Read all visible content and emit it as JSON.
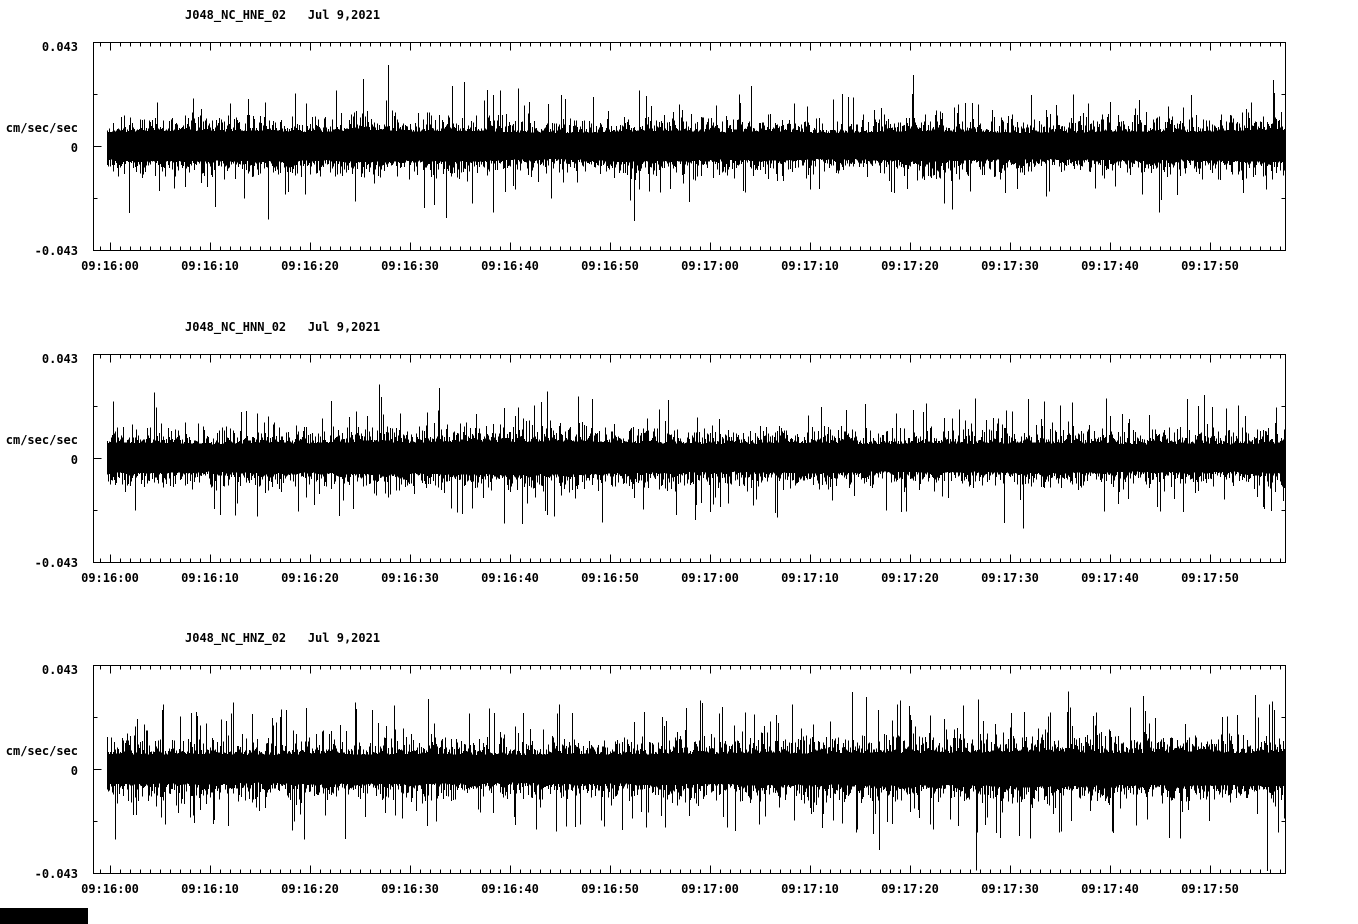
{
  "page": {
    "background": "#ffffff",
    "trace_color": "#000000",
    "artifact_color": "#000000"
  },
  "chart_data": [
    {
      "type": "line",
      "station": "J048_NC_HNE_02",
      "date": "Jul 9,2021",
      "title": "J048_NC_HNE_02   Jul 9,2021",
      "ylabel": "cm/sec/sec",
      "ylim": [
        -0.043,
        0.043
      ],
      "ytick_labels": [
        "0.043",
        "0",
        "-0.043"
      ],
      "x_tick_labels": [
        "09:16:00",
        "09:16:10",
        "09:16:20",
        "09:16:30",
        "09:16:40",
        "09:16:50",
        "09:17:00",
        "09:17:10",
        "09:17:20",
        "09:17:30",
        "09:17:40",
        "09:17:50"
      ],
      "x_major_interval_s": 10,
      "x_minor_interval_s": 1,
      "duration_s": 117.5,
      "grid": false,
      "legend": false,
      "noise_envelope": [
        0.9,
        1.0,
        0.95,
        1.0,
        0.9,
        1.05,
        0.95,
        1.0,
        0.9,
        0.85,
        0.95,
        1.0,
        0.9,
        0.95,
        0.85,
        0.9,
        1.0,
        0.9,
        0.85,
        0.9,
        0.95,
        0.9,
        1.0,
        1.05
      ],
      "spikiness": 0.1,
      "seed": 101
    },
    {
      "type": "line",
      "station": "J048_NC_HNN_02",
      "date": "Jul 9,2021",
      "title": "J048_NC_HNN_02   Jul 9,2021",
      "ylabel": "cm/sec/sec",
      "ylim": [
        -0.043,
        0.043
      ],
      "ytick_labels": [
        "0.043",
        "0",
        "-0.043"
      ],
      "x_tick_labels": [
        "09:16:00",
        "09:16:10",
        "09:16:20",
        "09:16:30",
        "09:16:40",
        "09:16:50",
        "09:17:00",
        "09:17:10",
        "09:17:20",
        "09:17:30",
        "09:17:40",
        "09:17:50"
      ],
      "x_major_interval_s": 10,
      "x_minor_interval_s": 1,
      "duration_s": 117.5,
      "grid": false,
      "legend": false,
      "noise_envelope": [
        0.95,
        1.0,
        0.9,
        1.0,
        0.95,
        1.05,
        1.0,
        1.1,
        1.05,
        1.1,
        1.0,
        0.95,
        0.9,
        0.95,
        1.0,
        0.9,
        0.95,
        0.9,
        1.0,
        0.95,
        0.9,
        0.95,
        0.9,
        1.0
      ],
      "spikiness": 0.11,
      "seed": 202
    },
    {
      "type": "line",
      "station": "J048_NC_HNZ_02",
      "date": "Jul 9,2021",
      "title": "J048_NC_HNZ_02   Jul 9,2021",
      "ylabel": "cm/sec/sec",
      "ylim": [
        -0.043,
        0.043
      ],
      "ytick_labels": [
        "0.043",
        "0",
        "-0.043"
      ],
      "x_tick_labels": [
        "09:16:00",
        "09:16:10",
        "09:16:20",
        "09:16:30",
        "09:16:40",
        "09:16:50",
        "09:17:00",
        "09:17:10",
        "09:17:20",
        "09:17:30",
        "09:17:40",
        "09:17:50"
      ],
      "x_major_interval_s": 10,
      "x_minor_interval_s": 1,
      "duration_s": 117.5,
      "grid": false,
      "legend": false,
      "noise_envelope": [
        1.0,
        0.95,
        1.0,
        0.9,
        1.0,
        0.95,
        1.0,
        0.95,
        0.9,
        1.0,
        0.95,
        1.0,
        1.0,
        1.05,
        1.0,
        1.1,
        1.05,
        1.1,
        1.15,
        1.1,
        1.05,
        1.1,
        1.05,
        1.1
      ],
      "spikiness": 0.16,
      "seed": 303
    }
  ]
}
